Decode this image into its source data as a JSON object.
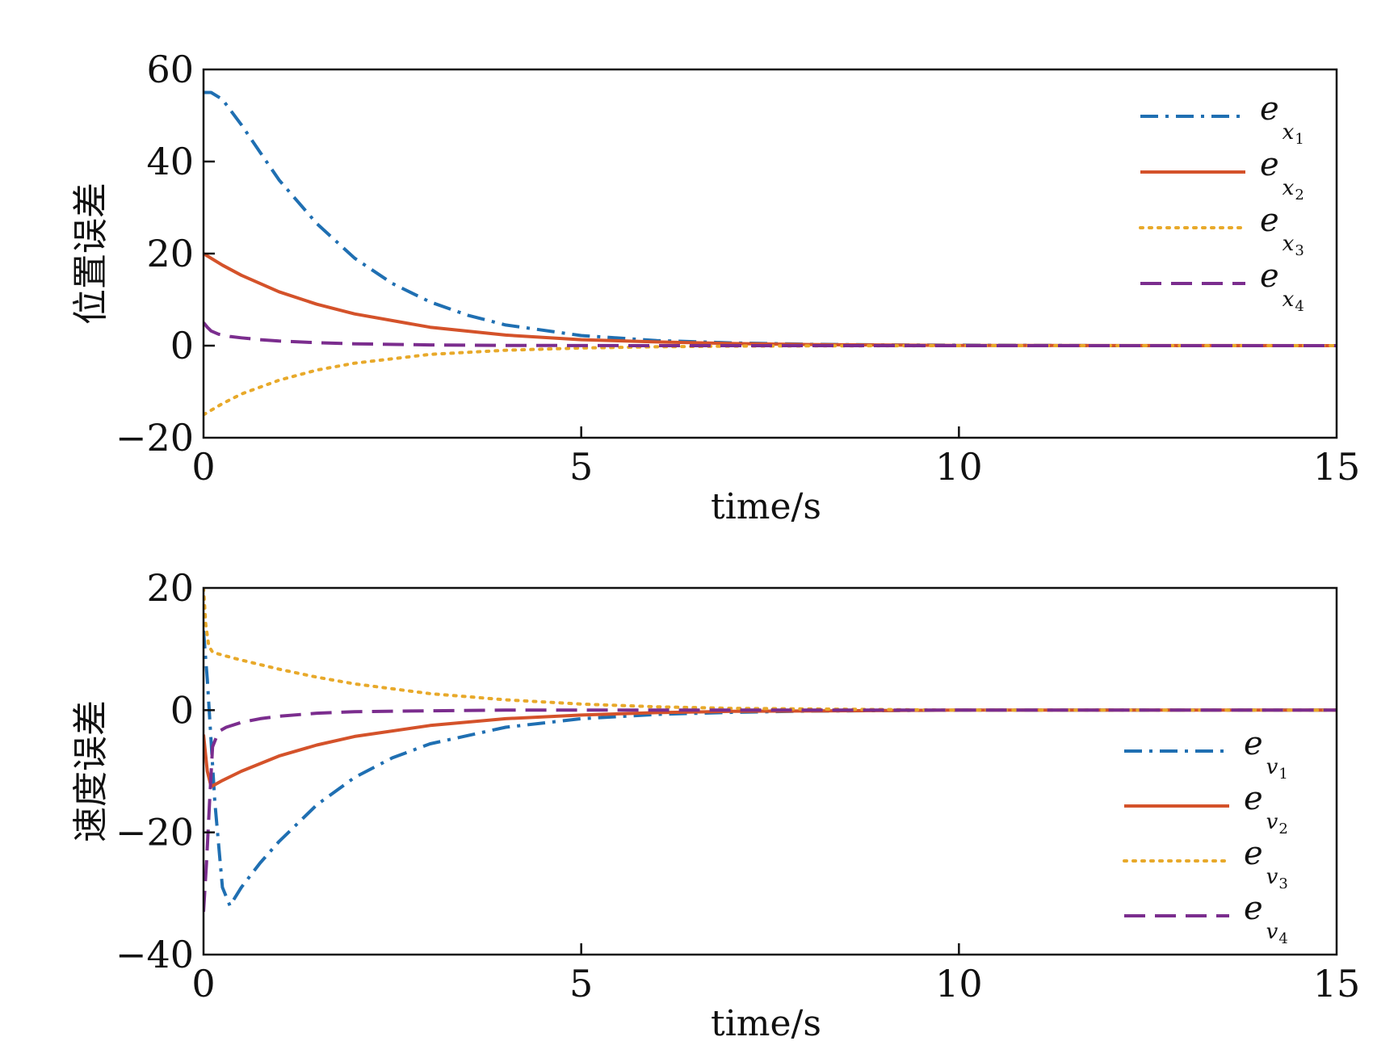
{
  "chart_data": [
    {
      "type": "line",
      "xlabel": "time/s",
      "ylabel": "位置误差",
      "xlim": [
        0,
        15
      ],
      "ylim": [
        -20,
        60
      ],
      "xticks": [
        0,
        5,
        10,
        15
      ],
      "xtick_labels": [
        "0",
        "5",
        "10",
        "15"
      ],
      "yticks": [
        -20,
        0,
        20,
        40,
        60
      ],
      "ytick_labels": [
        "−20",
        "0",
        "20",
        "40",
        "60"
      ],
      "grid": false,
      "legend_position": "top-right",
      "series": [
        {
          "name": "e_x1",
          "label_base": "e",
          "label_sub": "x",
          "label_subsub": "1",
          "color": "#1f6fb2",
          "style": "dash-dot",
          "x": [
            0,
            0.1,
            0.25,
            0.5,
            0.75,
            1,
            1.5,
            2,
            2.5,
            3,
            3.5,
            4,
            5,
            6,
            7,
            8,
            9,
            10,
            12,
            15
          ],
          "y": [
            55,
            55,
            53.5,
            48,
            42,
            36,
            26.5,
            19,
            13.5,
            9.5,
            6.6,
            4.5,
            2.2,
            1.1,
            0.6,
            0.3,
            0.15,
            0.1,
            0,
            0
          ]
        },
        {
          "name": "e_x2",
          "label_base": "e",
          "label_sub": "x",
          "label_subsub": "2",
          "color": "#d4522a",
          "style": "solid",
          "x": [
            0,
            0.25,
            0.5,
            1,
            1.5,
            2,
            3,
            4,
            5,
            6,
            7,
            8,
            10,
            15
          ],
          "y": [
            20,
            17.5,
            15.3,
            11.7,
            9,
            6.9,
            4,
            2.3,
            1.3,
            0.8,
            0.45,
            0.25,
            0.05,
            0
          ]
        },
        {
          "name": "e_x3",
          "label_base": "e",
          "label_sub": "x",
          "label_subsub": "3",
          "color": "#e8a92a",
          "style": "dotted",
          "x": [
            0,
            0.25,
            0.5,
            1,
            1.5,
            2,
            3,
            4,
            5,
            6,
            7,
            8,
            10,
            15
          ],
          "y": [
            -15,
            -12.6,
            -10.5,
            -7.5,
            -5.3,
            -3.8,
            -1.9,
            -1,
            -0.5,
            -0.25,
            -0.1,
            -0.05,
            0,
            0
          ]
        },
        {
          "name": "e_x4",
          "label_base": "e",
          "label_sub": "x",
          "label_subsub": "4",
          "color": "#7b2d8e",
          "style": "dashed",
          "x": [
            0,
            0.05,
            0.1,
            0.2,
            0.35,
            0.5,
            0.75,
            1,
            1.5,
            2,
            3,
            4,
            6,
            10,
            15
          ],
          "y": [
            5,
            4,
            3.2,
            2.5,
            2,
            1.7,
            1.3,
            1,
            0.65,
            0.4,
            0.15,
            0.05,
            0,
            0,
            0
          ]
        }
      ]
    },
    {
      "type": "line",
      "xlabel": "time/s",
      "ylabel": "速度误差",
      "xlim": [
        0,
        15
      ],
      "ylim": [
        -40,
        20
      ],
      "xticks": [
        0,
        5,
        10,
        15
      ],
      "xtick_labels": [
        "0",
        "5",
        "10",
        "15"
      ],
      "yticks": [
        -40,
        -20,
        0,
        20
      ],
      "ytick_labels": [
        "−40",
        "−20",
        "0",
        "20"
      ],
      "grid": false,
      "legend_position": "bottom-right",
      "series": [
        {
          "name": "e_v1",
          "label_base": "e",
          "label_sub": "v",
          "label_subsub": "1",
          "color": "#1f6fb2",
          "style": "dash-dot",
          "x": [
            0,
            0.05,
            0.15,
            0.25,
            0.35,
            0.5,
            0.75,
            1,
            1.5,
            2,
            2.5,
            3,
            4,
            5,
            6,
            7,
            8,
            10,
            15
          ],
          "y": [
            13,
            5,
            -15,
            -29,
            -32,
            -29,
            -25,
            -21.5,
            -15.5,
            -11,
            -7.8,
            -5.5,
            -2.8,
            -1.4,
            -0.7,
            -0.35,
            -0.15,
            0,
            0
          ]
        },
        {
          "name": "e_v2",
          "label_base": "e",
          "label_sub": "v",
          "label_subsub": "2",
          "color": "#d4522a",
          "style": "solid",
          "x": [
            0,
            0.05,
            0.1,
            0.15,
            0.25,
            0.5,
            1,
            1.5,
            2,
            3,
            4,
            5,
            6,
            7,
            10,
            15
          ],
          "y": [
            -4,
            -10,
            -12.5,
            -12.2,
            -11.5,
            -10,
            -7.5,
            -5.7,
            -4.3,
            -2.5,
            -1.4,
            -0.8,
            -0.4,
            -0.2,
            0,
            0
          ]
        },
        {
          "name": "e_v3",
          "label_base": "e",
          "label_sub": "v",
          "label_subsub": "3",
          "color": "#e8a92a",
          "style": "dotted",
          "x": [
            0,
            0.03,
            0.07,
            0.12,
            0.25,
            0.5,
            1,
            1.5,
            2,
            3,
            4,
            5,
            6,
            7,
            10,
            15
          ],
          "y": [
            20,
            14,
            10.5,
            9.5,
            9,
            8.2,
            6.7,
            5.4,
            4.3,
            2.7,
            1.7,
            1,
            0.55,
            0.3,
            0,
            0
          ]
        },
        {
          "name": "e_v4",
          "label_base": "e",
          "label_sub": "v",
          "label_subsub": "4",
          "color": "#7b2d8e",
          "style": "dashed",
          "x": [
            0,
            0.04,
            0.08,
            0.12,
            0.2,
            0.3,
            0.5,
            0.75,
            1,
            1.5,
            2,
            3,
            4,
            6,
            10,
            15
          ],
          "y": [
            -33,
            -25,
            -15,
            -6,
            -3.5,
            -2.8,
            -2,
            -1.4,
            -1,
            -0.5,
            -0.25,
            -0.1,
            0,
            0,
            0,
            0
          ]
        }
      ]
    }
  ]
}
